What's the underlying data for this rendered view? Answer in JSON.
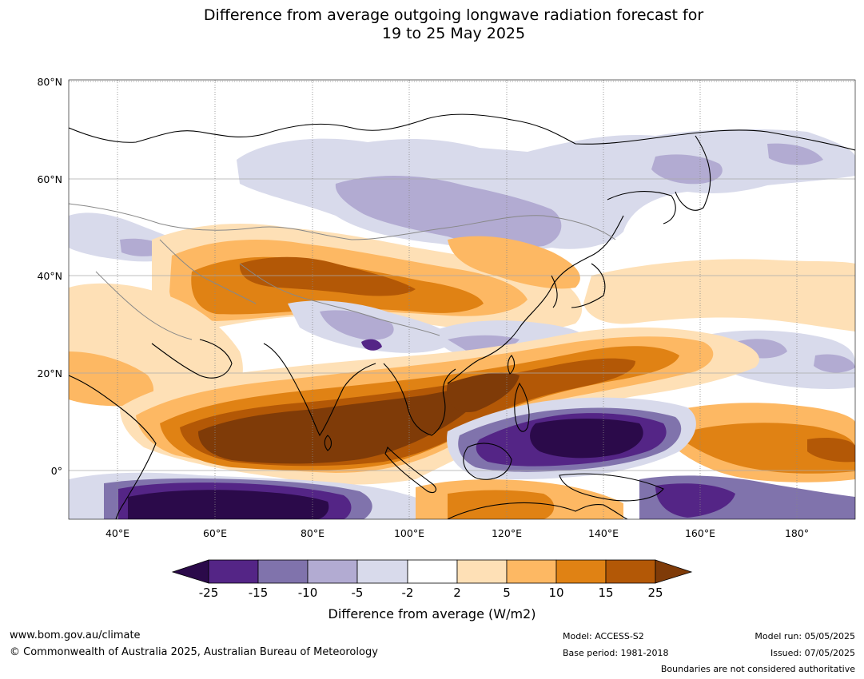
{
  "title": {
    "line1": "Difference from average outgoing longwave radiation forecast for",
    "line2": "19 to 25 May 2025"
  },
  "map": {
    "lat_labels": [
      "80°N",
      "60°N",
      "40°N",
      "20°N",
      "0°"
    ],
    "lon_labels": [
      "40°E",
      "60°E",
      "80°E",
      "100°E",
      "120°E",
      "140°E",
      "160°E",
      "180°"
    ],
    "lat_range": [
      -10,
      81
    ],
    "lon_range": [
      30,
      190
    ]
  },
  "colorbar": {
    "ticks": [
      "-25",
      "-15",
      "-10",
      "-5",
      "-2",
      "2",
      "5",
      "10",
      "15",
      "25"
    ],
    "colors": {
      "lt_-25": "#2b0a4a",
      "-25_-15": "#542586",
      "-15_-10": "#8073ac",
      "-10_-5": "#b2abd2",
      "-5_-2": "#d8daeb",
      "-2_2": "#ffffff",
      "2_5": "#fee0b6",
      "5_10": "#fdb863",
      "10_15": "#e08214",
      "15_25": "#b35806",
      "gt_25": "#7f3b08"
    },
    "label": "Difference from average (W/m2)"
  },
  "footer": {
    "website": "www.bom.gov.au/climate",
    "copyright": "© Commonwealth of Australia 2025, Australian Bureau of Meteorology",
    "model": "Model: ACCESS-S2",
    "base_period": "Base period: 1981-2018",
    "model_run": "Model run: 05/05/2025",
    "issued": "Issued: 07/05/2025",
    "disclaimer": "Boundaries are not considered authoritative"
  }
}
